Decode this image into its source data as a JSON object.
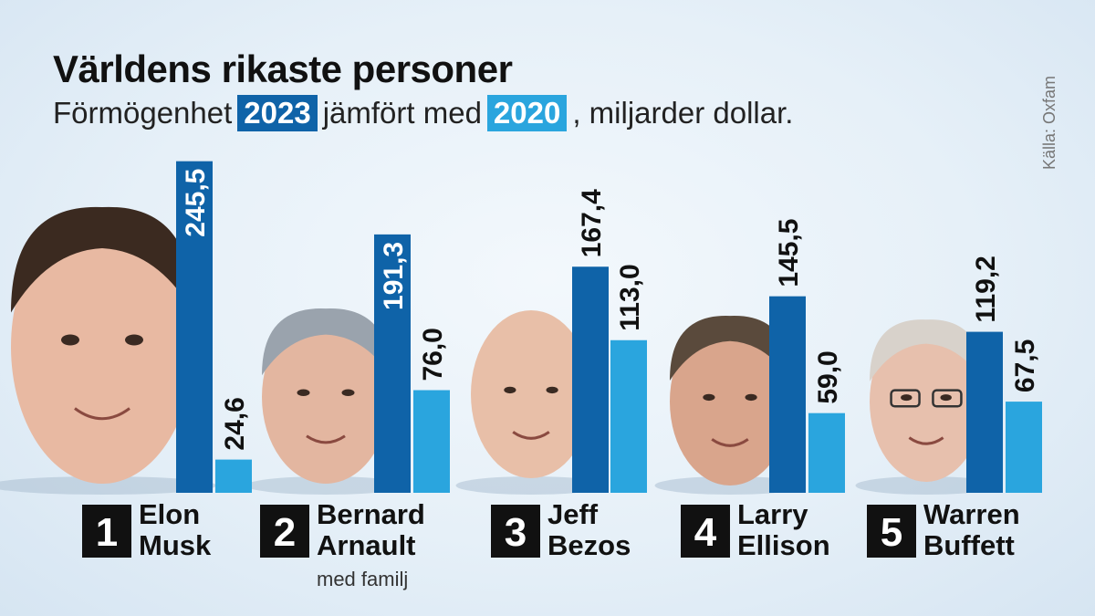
{
  "title": "Världens rikaste personer",
  "subtitle": {
    "prefix": "Förmögenhet",
    "year1": "2023",
    "middle": "jämfört med",
    "year2": "2020",
    "suffix": ", miljarder dollar."
  },
  "source": "Källa: Oxfam",
  "colors": {
    "year2023": "#0f63a8",
    "year2020": "#2aa5de"
  },
  "chart_data": {
    "type": "bar",
    "title": "Världens rikaste personer",
    "subtitle": "Förmögenhet 2023 jämfört med 2020, miljarder dollar.",
    "categories": [
      "Elon Musk",
      "Bernard Arnault med familj",
      "Jeff Bezos",
      "Larry Ellison",
      "Warren Buffett"
    ],
    "series": [
      {
        "name": "2023",
        "values": [
          245.5,
          191.3,
          167.4,
          145.5,
          119.2
        ],
        "labels": [
          "245,5",
          "191,3",
          "167,4",
          "145,5",
          "119,2"
        ]
      },
      {
        "name": "2020",
        "values": [
          24.6,
          76.0,
          113.0,
          59.0,
          67.5
        ],
        "labels": [
          "24,6",
          "76,0",
          "113,0",
          "59,0",
          "67,5"
        ]
      }
    ],
    "ylim": [
      0,
      250
    ]
  },
  "people": [
    {
      "rank": "1",
      "first": "Elon",
      "last": "Musk",
      "note": ""
    },
    {
      "rank": "2",
      "first": "Bernard",
      "last": "Arnault",
      "note": "med familj"
    },
    {
      "rank": "3",
      "first": "Jeff",
      "last": "Bezos",
      "note": ""
    },
    {
      "rank": "4",
      "first": "Larry",
      "last": "Ellison",
      "note": ""
    },
    {
      "rank": "5",
      "first": "Warren",
      "last": "Buffett",
      "note": ""
    }
  ]
}
